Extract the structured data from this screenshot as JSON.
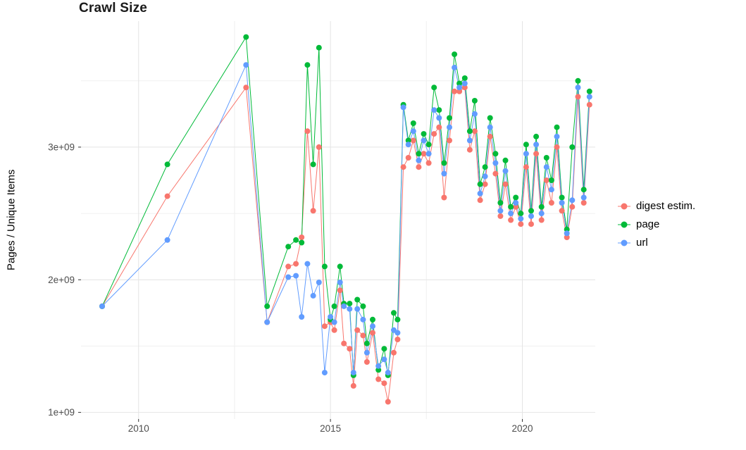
{
  "page": {
    "background_color": "#ffffff",
    "text_color": "#000000",
    "tick_label_color": "#4d4d4d"
  },
  "chart_data": {
    "type": "line",
    "title": "Crawl Size",
    "xlabel": "",
    "ylabel": "Pages / Unique Items",
    "grid": true,
    "legend_position": "right",
    "grid_major_color": "#e4e4e4",
    "grid_minor_color": "#f0f0f0",
    "x_unit": "year (decimal, crawl date)",
    "y_unit": "items, in billions (1e9); axis shows 1e+09 .. 3e+09",
    "x_domain": [
      2008.5,
      2021.9
    ],
    "y_domain": [
      0.95,
      3.95
    ],
    "x_ticks": [
      {
        "v": 2010,
        "label": "2010"
      },
      {
        "v": 2015,
        "label": "2015"
      },
      {
        "v": 2020,
        "label": "2020"
      }
    ],
    "x_minor_ticks": [
      2012.5,
      2017.5
    ],
    "y_ticks": [
      {
        "v": 1.0,
        "label": "1e+09"
      },
      {
        "v": 2.0,
        "label": "2e+09"
      },
      {
        "v": 3.0,
        "label": "3e+09"
      }
    ],
    "y_minor_ticks": [
      1.5,
      2.5,
      3.5
    ],
    "x": [
      2009.05,
      2010.75,
      2012.8,
      2013.35,
      2013.9,
      2014.1,
      2014.25,
      2014.4,
      2014.55,
      2014.7,
      2014.85,
      2015.0,
      2015.1,
      2015.25,
      2015.35,
      2015.5,
      2015.6,
      2015.7,
      2015.85,
      2015.95,
      2016.1,
      2016.25,
      2016.4,
      2016.5,
      2016.65,
      2016.75,
      2016.9,
      2017.03,
      2017.16,
      2017.3,
      2017.43,
      2017.56,
      2017.7,
      2017.83,
      2017.96,
      2018.1,
      2018.23,
      2018.36,
      2018.5,
      2018.63,
      2018.76,
      2018.9,
      2019.03,
      2019.16,
      2019.3,
      2019.43,
      2019.56,
      2019.7,
      2019.83,
      2019.96,
      2020.1,
      2020.23,
      2020.36,
      2020.5,
      2020.63,
      2020.76,
      2020.9,
      2021.03,
      2021.16,
      2021.3,
      2021.45,
      2021.6,
      2021.75
    ],
    "series": [
      {
        "id": "digest",
        "name": "digest estim.",
        "color": "#F8766D",
        "values": [
          1.8,
          2.63,
          3.45,
          1.68,
          2.1,
          2.12,
          2.32,
          3.12,
          2.52,
          3.0,
          1.65,
          1.68,
          1.62,
          1.92,
          1.52,
          1.48,
          1.2,
          1.62,
          1.58,
          1.38,
          1.6,
          1.25,
          1.22,
          1.08,
          1.45,
          1.55,
          2.85,
          2.92,
          3.05,
          2.85,
          2.95,
          2.88,
          3.1,
          3.15,
          2.62,
          3.05,
          3.42,
          3.42,
          3.45,
          2.98,
          3.12,
          2.6,
          2.72,
          3.08,
          2.8,
          2.48,
          2.72,
          2.45,
          2.55,
          2.42,
          2.85,
          2.42,
          2.95,
          2.45,
          2.75,
          2.58,
          3.0,
          2.52,
          2.32,
          2.55,
          3.38,
          2.58,
          3.32
        ]
      },
      {
        "id": "page",
        "name": "page",
        "color": "#00BA38",
        "values": [
          1.8,
          2.87,
          3.83,
          1.8,
          2.25,
          2.3,
          2.28,
          3.62,
          2.87,
          3.75,
          2.1,
          1.7,
          1.8,
          2.1,
          1.82,
          1.82,
          1.28,
          1.85,
          1.8,
          1.52,
          1.7,
          1.32,
          1.48,
          1.28,
          1.75,
          1.7,
          3.32,
          3.05,
          3.18,
          2.95,
          3.1,
          3.02,
          3.45,
          3.28,
          2.88,
          3.22,
          3.7,
          3.48,
          3.52,
          3.12,
          3.35,
          2.72,
          2.85,
          3.22,
          2.95,
          2.58,
          2.9,
          2.55,
          2.62,
          2.5,
          3.02,
          2.52,
          3.08,
          2.55,
          2.92,
          2.75,
          3.15,
          2.62,
          2.38,
          3.0,
          3.5,
          2.68,
          3.42
        ]
      },
      {
        "id": "url",
        "name": "url",
        "color": "#619CFF",
        "values": [
          1.8,
          2.3,
          3.62,
          1.68,
          2.02,
          2.03,
          1.72,
          2.12,
          1.88,
          1.98,
          1.3,
          1.72,
          1.68,
          1.98,
          1.8,
          1.78,
          1.3,
          1.78,
          1.7,
          1.45,
          1.65,
          1.35,
          1.4,
          1.3,
          1.62,
          1.6,
          3.3,
          3.02,
          3.12,
          2.9,
          3.05,
          2.95,
          3.28,
          3.22,
          2.8,
          3.15,
          3.6,
          3.45,
          3.48,
          3.05,
          3.25,
          2.65,
          2.78,
          3.15,
          2.88,
          2.52,
          2.82,
          2.5,
          2.58,
          2.46,
          2.95,
          2.48,
          3.02,
          2.5,
          2.85,
          2.68,
          3.08,
          2.58,
          2.35,
          2.6,
          3.45,
          2.62,
          3.38
        ]
      }
    ]
  }
}
